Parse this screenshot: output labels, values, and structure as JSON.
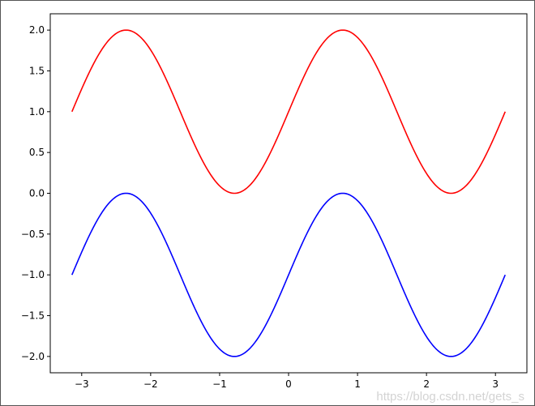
{
  "chart_data": {
    "type": "line",
    "title": "",
    "xlabel": "",
    "ylabel": "",
    "xlim": [
      -3.456,
      3.456
    ],
    "ylim": [
      -2.2,
      2.2
    ],
    "grid": false,
    "x_ticks": [
      "−3",
      "−2",
      "−1",
      "0",
      "1",
      "2",
      "3"
    ],
    "x_tick_values": [
      -3,
      -2,
      -1,
      0,
      1,
      2,
      3
    ],
    "y_ticks": [
      "−2.0",
      "−1.5",
      "−1.0",
      "−0.5",
      "0.0",
      "0.5",
      "1.0",
      "1.5",
      "2.0"
    ],
    "y_tick_values": [
      -2,
      -1.5,
      -1,
      -0.5,
      0,
      0.5,
      1,
      1.5,
      2
    ],
    "x_range": [
      -3.14159,
      3.14159
    ],
    "series": [
      {
        "color": "#ff0000",
        "function": "1 + sin(2x)",
        "points": [
          [
            -3.1416,
            1
          ],
          [
            -2.3562,
            2
          ],
          [
            -1.5708,
            1
          ],
          [
            -0.7854,
            0
          ],
          [
            0,
            1
          ],
          [
            0.7854,
            2
          ],
          [
            1.5708,
            1
          ],
          [
            2.3562,
            0
          ],
          [
            3.1416,
            1
          ]
        ]
      },
      {
        "color": "#0000ff",
        "function": "sin(2x) - 1",
        "points": [
          [
            -3.1416,
            -1
          ],
          [
            -2.3562,
            0
          ],
          [
            -1.5708,
            -1
          ],
          [
            -0.7854,
            -2
          ],
          [
            0,
            -1
          ],
          [
            0.7854,
            0
          ],
          [
            1.5708,
            -1
          ],
          [
            2.3562,
            -2
          ],
          [
            3.1416,
            -1
          ]
        ]
      }
    ]
  },
  "watermark": "https://blog.csdn.net/gets_s"
}
